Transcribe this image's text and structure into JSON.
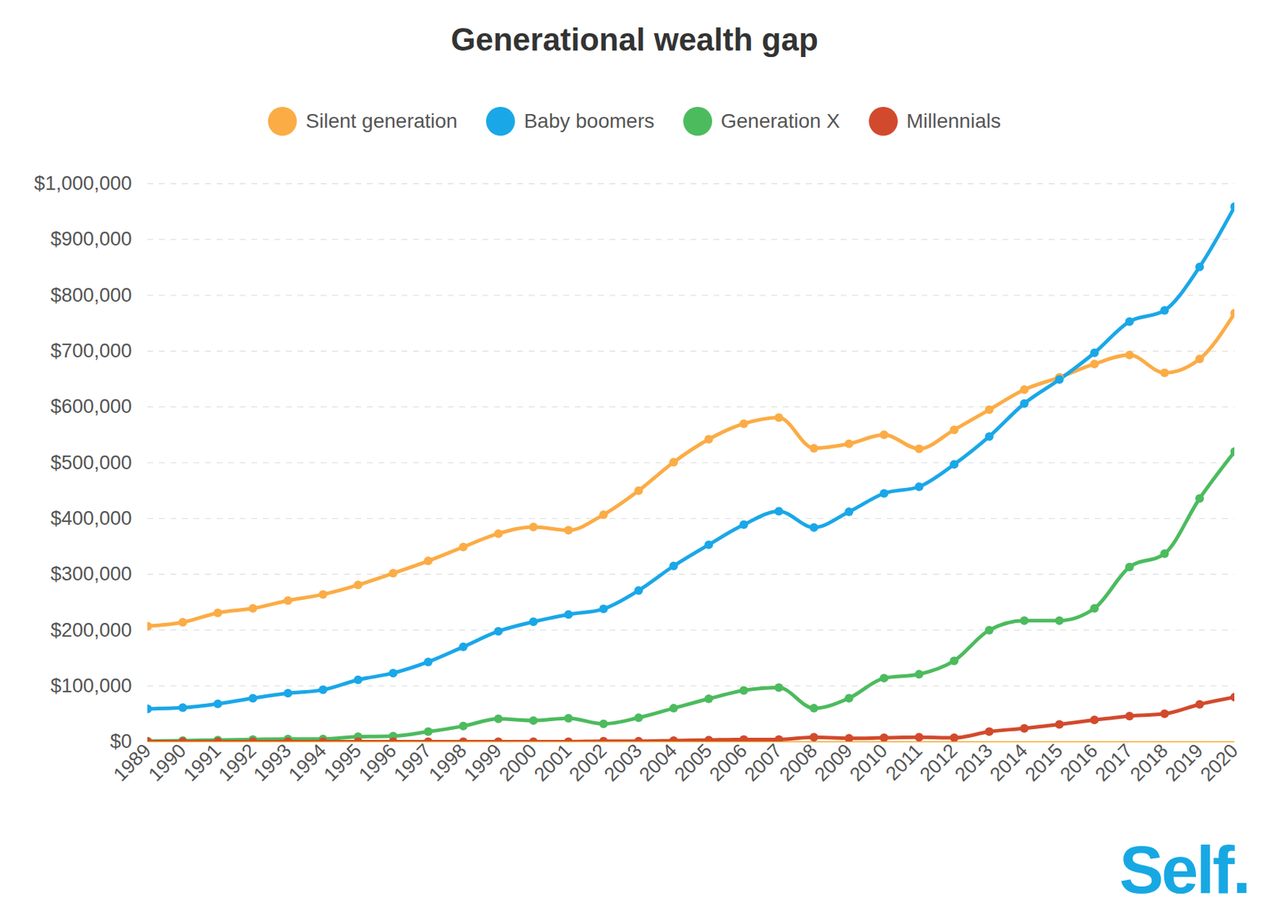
{
  "chart_data": {
    "type": "line",
    "title": "Generational wealth gap",
    "annotation": "Self.",
    "x": [
      1989,
      1990,
      1991,
      1992,
      1993,
      1994,
      1995,
      1996,
      1997,
      1998,
      1999,
      2000,
      2001,
      2002,
      2003,
      2004,
      2005,
      2006,
      2007,
      2008,
      2009,
      2010,
      2011,
      2012,
      2013,
      2014,
      2015,
      2016,
      2017,
      2018,
      2019,
      2020
    ],
    "xlim": [
      1989,
      2020
    ],
    "xticks": [
      1989,
      1990,
      1991,
      1992,
      1993,
      1994,
      1995,
      1996,
      1997,
      1998,
      1999,
      2000,
      2001,
      2002,
      2003,
      2004,
      2005,
      2006,
      2007,
      2008,
      2009,
      2010,
      2011,
      2012,
      2013,
      2014,
      2015,
      2016,
      2017,
      2018,
      2019,
      2020
    ],
    "ylim": [
      0,
      1000000
    ],
    "yticks": [
      {
        "value": 0,
        "label": "$0"
      },
      {
        "value": 100000,
        "label": "$100,000"
      },
      {
        "value": 200000,
        "label": "$200,000"
      },
      {
        "value": 300000,
        "label": "$300,000"
      },
      {
        "value": 400000,
        "label": "$400,000"
      },
      {
        "value": 500000,
        "label": "$500,000"
      },
      {
        "value": 600000,
        "label": "$600,000"
      },
      {
        "value": 700000,
        "label": "$700,000"
      },
      {
        "value": 800000,
        "label": "$800,000"
      },
      {
        "value": 900000,
        "label": "$900,000"
      },
      {
        "value": 1000000,
        "label": "$1,000,000"
      }
    ],
    "grid": true,
    "legend": "top",
    "marker": "circle",
    "series": [
      {
        "name": "Silent generation",
        "color": "#fbac45",
        "values": [
          207000,
          214000,
          231000,
          239000,
          253000,
          264000,
          281000,
          302000,
          324000,
          349000,
          373000,
          385000,
          379000,
          407000,
          450000,
          501000,
          542000,
          570000,
          581000,
          526000,
          534000,
          550000,
          525000,
          559000,
          595000,
          631000,
          653000,
          677000,
          693000,
          661000,
          686000,
          768000
        ]
      },
      {
        "name": "Baby boomers",
        "color": "#1aa7e8",
        "values": [
          59000,
          61000,
          68000,
          78000,
          87000,
          93000,
          111000,
          123000,
          143000,
          170000,
          198000,
          215000,
          228000,
          238000,
          271000,
          315000,
          353000,
          389000,
          413000,
          384000,
          412000,
          445000,
          457000,
          497000,
          547000,
          606000,
          649000,
          697000,
          753000,
          773000,
          851000,
          959000
        ]
      },
      {
        "name": "Generation X",
        "color": "#4cbb5e",
        "values": [
          1000,
          2000,
          3000,
          4000,
          5000,
          5000,
          9000,
          10000,
          18000,
          28000,
          41000,
          38000,
          42000,
          32000,
          43000,
          60000,
          77000,
          92000,
          97000,
          60000,
          78000,
          114000,
          121000,
          145000,
          200000,
          217000,
          217000,
          239000,
          313000,
          337000,
          436000,
          520000
        ]
      },
      {
        "name": "Millennials",
        "color": "#d24a2d",
        "values": [
          0,
          0,
          0,
          0,
          0,
          0,
          0,
          0,
          0,
          0,
          0,
          0,
          0,
          1000,
          1000,
          2000,
          3000,
          4000,
          4000,
          8000,
          6000,
          7000,
          8000,
          7000,
          18000,
          24000,
          31000,
          39000,
          46000,
          50000,
          67000,
          80000
        ]
      }
    ]
  }
}
